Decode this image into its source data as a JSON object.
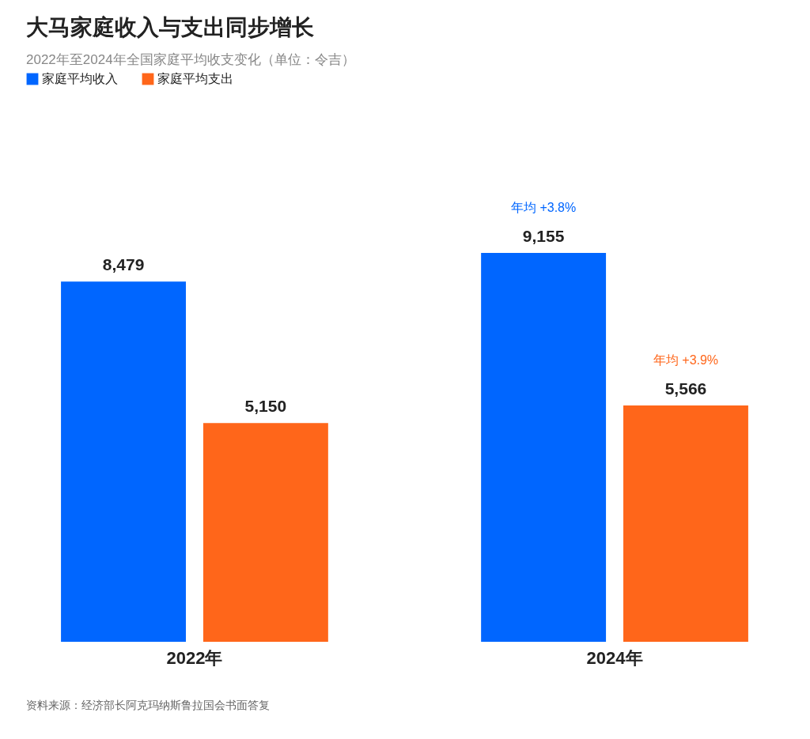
{
  "chart_data": {
    "type": "bar",
    "title": "大马家庭收入与支出同步增长",
    "subtitle": "2022年至2024年全国家庭平均收支变化（单位：令吉）",
    "categories": [
      "2022年",
      "2024年"
    ],
    "series": [
      {
        "name": "家庭平均收入",
        "color": "#0066ff",
        "values": [
          8479,
          9155
        ],
        "value_labels": [
          "8,479",
          "9,155"
        ]
      },
      {
        "name": "家庭平均支出",
        "color": "#ff661a",
        "values": [
          5150,
          5566
        ],
        "value_labels": [
          "5,150",
          "5,566"
        ]
      }
    ],
    "legend": "top left",
    "grid": false,
    "annotations": [
      "年均 +3.8%",
      "年均 +3.9%",
      "资料来源：经济部长阿克玛纳斯鲁拉国会书面答复"
    ]
  }
}
